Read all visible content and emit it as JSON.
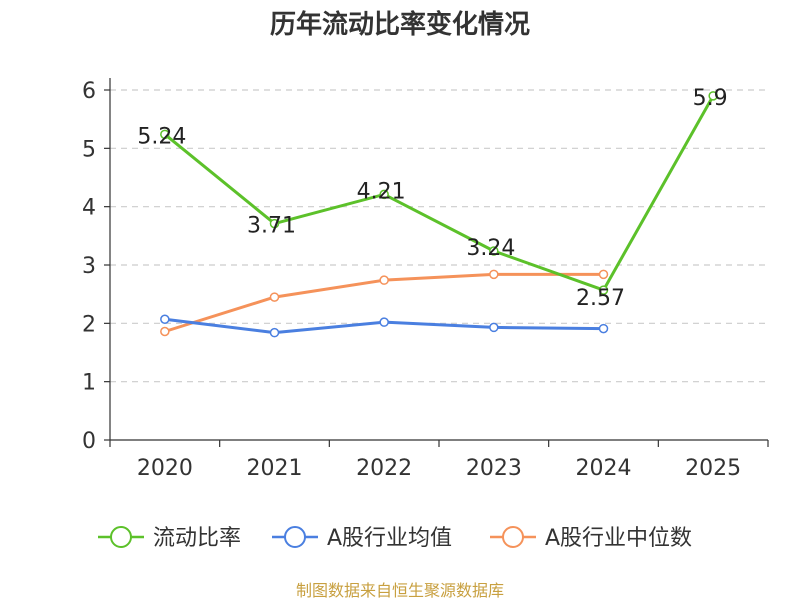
{
  "chart_data": {
    "type": "line",
    "title": "历年流动比率变化情况",
    "categories": [
      "2020",
      "2021",
      "2022",
      "2023",
      "2024",
      "2025"
    ],
    "ylim": [
      0,
      6
    ],
    "yticks": [
      0,
      1,
      2,
      3,
      4,
      5,
      6
    ],
    "grid": "horizontal-dashed",
    "legend_position": "bottom",
    "series": [
      {
        "name": "流动比率",
        "color": "#5cc12a",
        "values": [
          5.24,
          3.71,
          4.21,
          3.24,
          2.57,
          5.9
        ],
        "labels": [
          "5.24",
          "3.71",
          "4.21",
          "3.24",
          "2.57",
          "5.9"
        ]
      },
      {
        "name": "A股行业均值",
        "color": "#4a7fe0",
        "values": [
          2.07,
          1.84,
          2.02,
          1.93,
          1.91,
          null
        ]
      },
      {
        "name": "A股行业中位数",
        "color": "#f5925a",
        "values": [
          1.86,
          2.45,
          2.74,
          2.84,
          2.84,
          null
        ]
      }
    ]
  },
  "footer": {
    "source": "制图数据来自恒生聚源数据库"
  }
}
